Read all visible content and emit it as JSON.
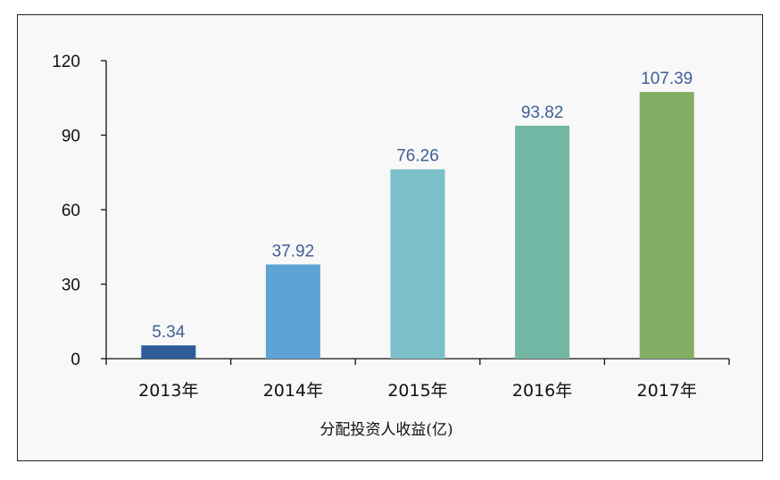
{
  "chart_data": {
    "type": "bar",
    "categories": [
      "2013年",
      "2014年",
      "2015年",
      "2016年",
      "2017年"
    ],
    "values": [
      5.34,
      37.92,
      76.26,
      93.82,
      107.39
    ],
    "value_labels": [
      "5.34",
      "37.92",
      "76.26",
      "93.82",
      "107.39"
    ],
    "title": "",
    "xlabel": "分配投资人收益(亿)",
    "ylabel": "",
    "ylim": [
      0,
      120
    ],
    "yticks": [
      0,
      30,
      60,
      90,
      120
    ],
    "ytick_labels": [
      "0",
      "30",
      "60",
      "90",
      "120"
    ],
    "grid": false,
    "colors": [
      "#2e5d98",
      "#5da3d6",
      "#7cbfcb",
      "#72b7a3",
      "#82ae64"
    ]
  }
}
